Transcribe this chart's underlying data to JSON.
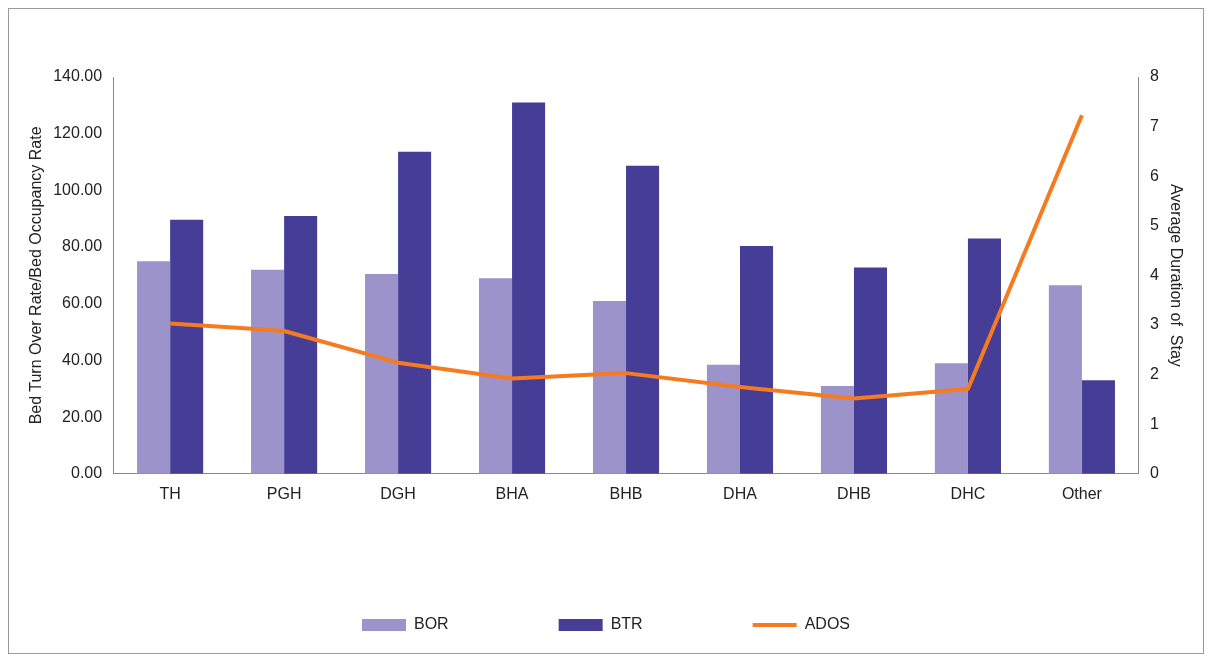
{
  "chart_data": {
    "type": "bar",
    "ylabel": "Bed Turn Over Rate/Bed Occupancy Rate",
    "y2label": "Average Duration of  Stay",
    "categories": [
      "TH",
      "PGH",
      "DGH",
      "BHA",
      "BHB",
      "DHA",
      "DHB",
      "DHC",
      "Other"
    ],
    "series": [
      {
        "name": "BOR",
        "color": "#9b93c9",
        "values": [
          75,
          72,
          70.5,
          69,
          61,
          38.5,
          31,
          39,
          66.5
        ]
      },
      {
        "name": "BTR",
        "color": "#463e96",
        "values": [
          89.6,
          91,
          113.6,
          131,
          108.7,
          80.4,
          72.8,
          83,
          33
        ]
      },
      {
        "name": "ADOS",
        "type": "line",
        "axis": "y2",
        "color": "#f47b20",
        "marker": "none",
        "values": [
          3.03,
          2.88,
          2.24,
          1.92,
          2.03,
          1.75,
          1.52,
          1.71,
          7.23
        ]
      }
    ],
    "ylim": [
      0,
      140
    ],
    "yticks": [
      {
        "value": 0,
        "label": "0.00"
      },
      {
        "value": 20,
        "label": "20.00"
      },
      {
        "value": 40,
        "label": "40.00"
      },
      {
        "value": 60,
        "label": "60.00"
      },
      {
        "value": 80,
        "label": "80.00"
      },
      {
        "value": 100,
        "label": "100.00"
      },
      {
        "value": 120,
        "label": "120.00"
      },
      {
        "value": 140,
        "label": "140.00"
      }
    ],
    "y2lim": [
      0,
      8
    ],
    "y2ticks": [
      0,
      1,
      2,
      3,
      4,
      5,
      6,
      7,
      8
    ],
    "grid": false,
    "legend": "bottom"
  }
}
